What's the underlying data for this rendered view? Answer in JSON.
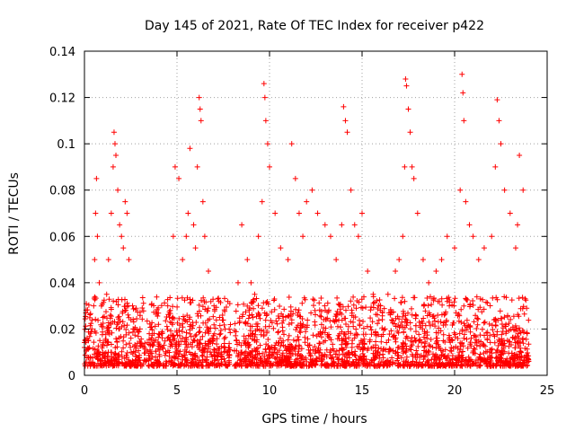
{
  "chart_data": {
    "type": "scatter",
    "title": "Day 145 of 2021, Rate Of TEC Index for receiver p422",
    "xlabel": "GPS time / hours",
    "ylabel": "ROTI / TECUs",
    "xlim": [
      0,
      25
    ],
    "ylim": [
      0,
      0.14
    ],
    "xticks": [
      0,
      5,
      10,
      15,
      20,
      25
    ],
    "yticks": [
      0,
      0.02,
      0.04,
      0.06,
      0.08,
      0.1,
      0.12,
      0.14
    ],
    "xtick_labels": [
      "0",
      "5",
      "10",
      "15",
      "20",
      "25"
    ],
    "ytick_labels": [
      "0",
      "0.02",
      "0.04",
      "0.06",
      "0.08",
      "0.1",
      "0.12",
      "0.14"
    ],
    "grid": true,
    "marker": "plus",
    "color": "#ff0000",
    "data_gap_hours": [
      7.9,
      8.1
    ],
    "series": [
      {
        "x": [
          0.0,
          0.2,
          0.4,
          0.5,
          0.55,
          0.6,
          0.65,
          0.7,
          0.8,
          1.0,
          1.2,
          1.3,
          1.45,
          1.55,
          1.6,
          1.65,
          1.7,
          1.8,
          1.9,
          2.0,
          2.1,
          2.2,
          2.3,
          2.4,
          2.6,
          3.0,
          3.5,
          4.0,
          4.5,
          4.8,
          4.9,
          5.1,
          5.3,
          5.5,
          5.6,
          5.7,
          5.9,
          6.0,
          6.1,
          6.2,
          6.25,
          6.3,
          6.4,
          6.5,
          6.7,
          7.0,
          7.3,
          7.6,
          8.2,
          8.3,
          8.5,
          8.8,
          9.0,
          9.2,
          9.4,
          9.6,
          9.7,
          9.75,
          9.8,
          9.9,
          10.0,
          10.3,
          10.6,
          11.0,
          11.2,
          11.4,
          11.6,
          11.8,
          12.0,
          12.3,
          12.6,
          13.0,
          13.3,
          13.6,
          13.9,
          14.0,
          14.1,
          14.2,
          14.4,
          14.6,
          14.8,
          15.0,
          15.3,
          15.6,
          16.0,
          16.4,
          16.8,
          17.0,
          17.2,
          17.3,
          17.35,
          17.4,
          17.5,
          17.6,
          17.7,
          17.8,
          18.0,
          18.3,
          18.6,
          19.0,
          19.3,
          19.6,
          20.0,
          20.3,
          20.4,
          20.45,
          20.5,
          20.6,
          20.8,
          21.0,
          21.3,
          21.6,
          22.0,
          22.2,
          22.3,
          22.4,
          22.5,
          22.7,
          23.0,
          23.3,
          23.4,
          23.5,
          23.7
        ],
        "y": [
          0.012,
          0.015,
          0.02,
          0.03,
          0.05,
          0.07,
          0.085,
          0.06,
          0.04,
          0.025,
          0.035,
          0.05,
          0.07,
          0.09,
          0.105,
          0.1,
          0.095,
          0.08,
          0.065,
          0.06,
          0.055,
          0.075,
          0.07,
          0.05,
          0.03,
          0.02,
          0.018,
          0.022,
          0.03,
          0.06,
          0.09,
          0.085,
          0.05,
          0.06,
          0.07,
          0.098,
          0.065,
          0.055,
          0.09,
          0.12,
          0.115,
          0.11,
          0.075,
          0.06,
          0.045,
          0.03,
          0.025,
          0.02,
          0.015,
          0.04,
          0.065,
          0.05,
          0.04,
          0.035,
          0.06,
          0.075,
          0.126,
          0.12,
          0.11,
          0.1,
          0.09,
          0.07,
          0.055,
          0.05,
          0.1,
          0.085,
          0.07,
          0.06,
          0.075,
          0.08,
          0.07,
          0.065,
          0.06,
          0.05,
          0.065,
          0.116,
          0.11,
          0.105,
          0.08,
          0.065,
          0.06,
          0.07,
          0.045,
          0.035,
          0.03,
          0.035,
          0.045,
          0.05,
          0.06,
          0.09,
          0.128,
          0.125,
          0.115,
          0.105,
          0.09,
          0.085,
          0.07,
          0.05,
          0.04,
          0.045,
          0.05,
          0.06,
          0.055,
          0.08,
          0.13,
          0.122,
          0.11,
          0.075,
          0.065,
          0.06,
          0.05,
          0.055,
          0.06,
          0.09,
          0.119,
          0.11,
          0.1,
          0.08,
          0.07,
          0.055,
          0.065,
          0.095,
          0.08
        ]
      }
    ]
  }
}
